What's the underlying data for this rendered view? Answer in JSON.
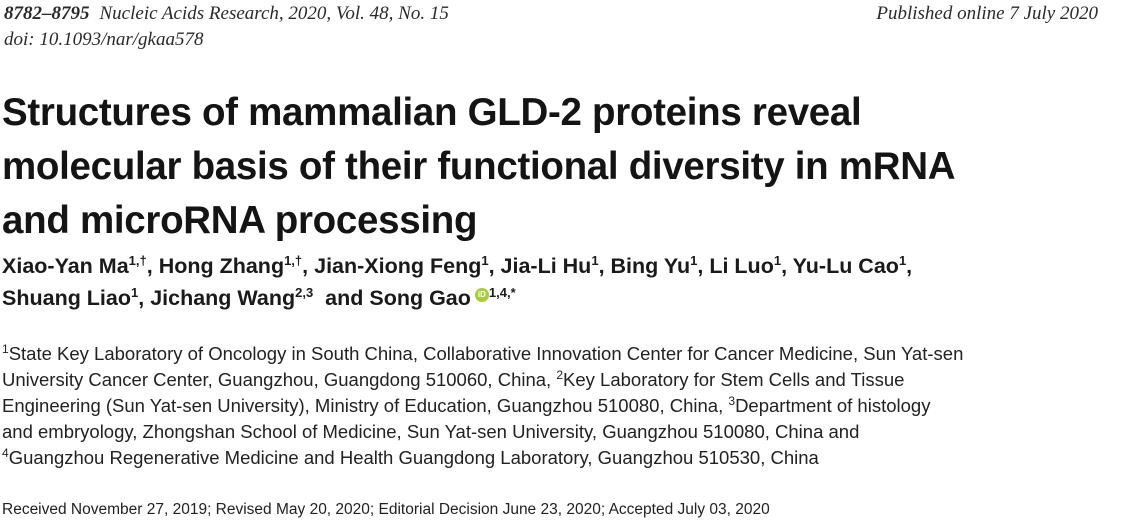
{
  "header": {
    "pages": "8782–8795",
    "journal": "Nucleic Acids Research, 2020, Vol. 48, No. 15",
    "doi": "doi: 10.1093/nar/gkaa578",
    "published": "Published online 7 July 2020"
  },
  "title": {
    "lines": [
      "Structures of mammalian GLD-2 proteins reveal",
      "molecular basis of their functional diversity in mRNA",
      "and microRNA processing"
    ]
  },
  "authors": [
    {
      "name": "Xiao-Yan Ma",
      "sup": "1,†",
      "sep": ", "
    },
    {
      "name": "Hong Zhang",
      "sup": "1,†",
      "sep": ", "
    },
    {
      "name": "Jian-Xiong Feng",
      "sup": "1",
      "sep": ", "
    },
    {
      "name": "Jia-Li Hu",
      "sup": "1",
      "sep": ", "
    },
    {
      "name": "Bing Yu",
      "sup": "1",
      "sep": ", "
    },
    {
      "name": "Li Luo",
      "sup": "1",
      "sep": ", "
    },
    {
      "name": "Yu-Lu Cao",
      "sup": "1",
      "sep": ","
    },
    {
      "name": "Shuang Liao",
      "sup": "1",
      "sep": ", "
    },
    {
      "name": "Jichang Wang",
      "sup": "2,3",
      "sep": "  and "
    },
    {
      "name": "Song Gao",
      "sup": "1,4,*",
      "sep": ""
    }
  ],
  "orcid": {
    "icon": "orcid-icon",
    "glyph": "iD",
    "color": "#a6ce39"
  },
  "affiliations": {
    "sup1": "1",
    "line1": "State Key Laboratory of Oncology in South China, Collaborative Innovation Center for Cancer Medicine, Sun Yat-sen",
    "line2a": "University Cancer Center, Guangzhou, Guangdong 510060, China, ",
    "sup2": "2",
    "line2b": "Key Laboratory for Stem Cells and Tissue",
    "line3a": "Engineering (Sun Yat-sen University), Ministry of Education, Guangzhou 510080, China, ",
    "sup3": "3",
    "line3b": "Department of histology",
    "line4": "and embryology, Zhongshan School of Medicine, Sun Yat-sen University, Guangzhou 510080, China and",
    "sup4": "4",
    "line5": "Guangzhou Regenerative Medicine and Health Guangdong Laboratory, Guangzhou 510530, China"
  },
  "received": "Received November 27, 2019; Revised May 20, 2020; Editorial Decision June 23, 2020; Accepted July 03, 2020"
}
